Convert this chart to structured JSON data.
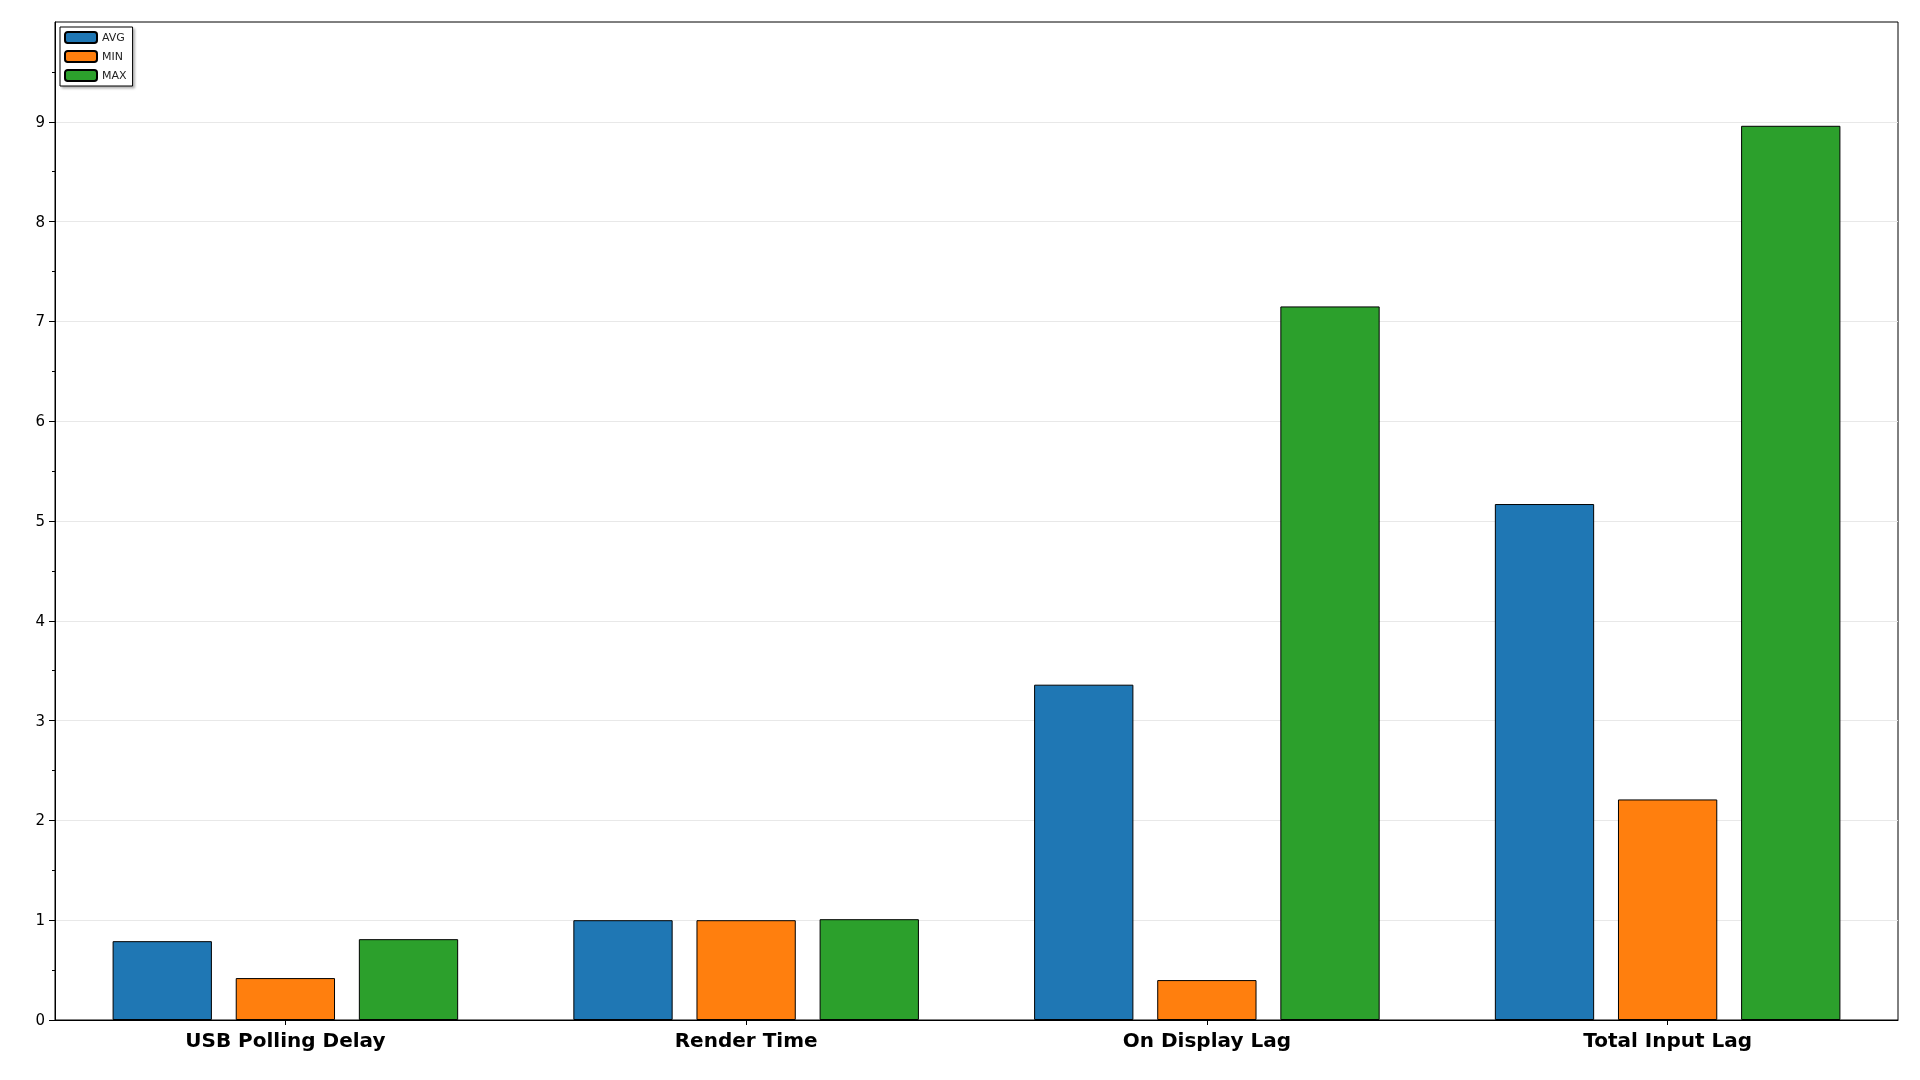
{
  "chart_data": {
    "type": "bar",
    "categories": [
      "USB Polling Delay",
      "Render Time",
      "On Display Lag",
      "Total Input Lag"
    ],
    "series": [
      {
        "name": "AVG",
        "color": "#1f77b4",
        "values": [
          0.79,
          1.0,
          3.36,
          5.17
        ]
      },
      {
        "name": "MIN",
        "color": "#ff7f0e",
        "values": [
          0.42,
          1.0,
          0.4,
          2.21
        ]
      },
      {
        "name": "MAX",
        "color": "#2ca02c",
        "values": [
          0.81,
          1.01,
          7.15,
          8.96
        ]
      }
    ],
    "ylim": [
      0,
      10
    ],
    "yticks": [
      0,
      1,
      2,
      3,
      4,
      5,
      6,
      7,
      8,
      9
    ],
    "grid": "y",
    "legend": "top left"
  }
}
